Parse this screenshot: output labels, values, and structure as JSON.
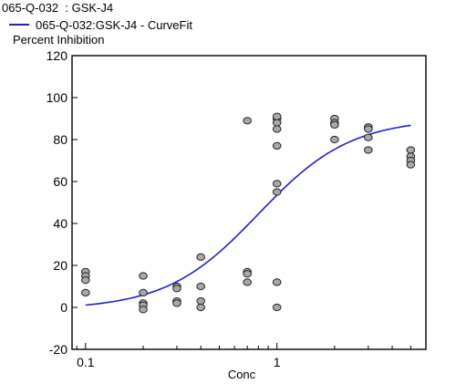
{
  "chart_data": {
    "type": "scatter",
    "title": "065-Q-032  : GSK-J4",
    "legend": {
      "entries": [
        "065-Q-032:GSK-J4 - CurveFit"
      ],
      "placement": "top-left"
    },
    "xlabel": "Conc",
    "ylabel": "Percent Inhibition",
    "xscale": "log",
    "xlim": [
      0.085,
      6.0
    ],
    "ylim": [
      -20,
      120
    ],
    "xticks": [
      0.1,
      1
    ],
    "yticks": [
      -20,
      0,
      20,
      40,
      60,
      80,
      100,
      120
    ],
    "grid": false,
    "series": [
      {
        "kind": "points",
        "color": "#a9a9a9",
        "x": [
          0.1,
          0.1,
          0.1,
          0.1,
          0.2,
          0.2,
          0.2,
          0.2,
          0.2,
          0.3,
          0.3,
          0.3,
          0.3,
          0.4,
          0.4,
          0.4,
          0.4,
          0.7,
          0.7,
          0.7,
          0.7,
          1,
          1,
          1,
          1,
          1,
          1,
          1,
          1,
          1,
          2,
          2,
          2,
          2,
          3,
          3,
          3,
          3,
          5,
          5,
          5,
          5
        ],
        "y": [
          17,
          15,
          13,
          7,
          15,
          7,
          2,
          1,
          -1,
          10,
          9,
          3,
          2,
          24,
          10,
          3,
          0,
          89,
          17,
          16,
          12,
          90,
          88,
          85,
          77,
          59,
          55,
          12,
          0,
          91,
          90,
          88,
          87,
          80,
          86,
          85,
          81,
          75,
          75,
          72,
          70,
          68
        ]
      },
      {
        "name": "065-Q-032:GSK-J4 - CurveFit",
        "kind": "curve",
        "color": "#1f1fd6",
        "bottom": -1,
        "top": 90,
        "ec50": 0.8,
        "hill": 1.8,
        "xrange": [
          0.1,
          5
        ]
      }
    ]
  }
}
